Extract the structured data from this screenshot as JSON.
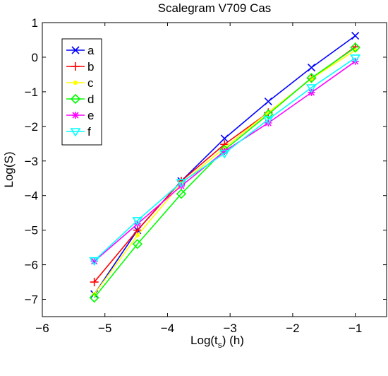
{
  "chart_data": {
    "type": "line",
    "title": "Scalegram V709 Cas",
    "xlabel": {
      "main": "Log(t",
      "sub": "s",
      "tail": ") (h)"
    },
    "ylabel": "Log(S)",
    "xlim": [
      -6,
      -0.5
    ],
    "ylim": [
      -7.5,
      1
    ],
    "xticks": [
      -6,
      -5,
      -4,
      -3,
      -2,
      -1
    ],
    "yticks": [
      1,
      0,
      -1,
      -2,
      -3,
      -4,
      -5,
      -6,
      -7
    ],
    "grid": false,
    "legend_position": "top-left",
    "x": [
      -5.17,
      -4.48,
      -3.78,
      -3.09,
      -2.39,
      -1.7,
      -1.0
    ],
    "series": [
      {
        "name": "a",
        "color": "#0000ff",
        "marker": "x",
        "values": [
          -6.85,
          -5.0,
          -3.58,
          -2.35,
          -1.28,
          -0.3,
          0.62
        ]
      },
      {
        "name": "b",
        "color": "#ff0000",
        "marker": "plus",
        "values": [
          -6.5,
          -5.0,
          -3.58,
          -2.52,
          -1.6,
          -0.62,
          0.3
        ]
      },
      {
        "name": "c",
        "color": "#ffff00",
        "marker": "dot",
        "values": [
          -6.85,
          -5.15,
          -3.65,
          -2.62,
          -1.6,
          -0.62,
          0.2
        ]
      },
      {
        "name": "d",
        "color": "#00ff00",
        "marker": "diamond",
        "values": [
          -6.95,
          -5.4,
          -3.95,
          -2.68,
          -1.65,
          -0.6,
          0.28
        ]
      },
      {
        "name": "e",
        "color": "#ff00ff",
        "marker": "star",
        "values": [
          -5.9,
          -4.82,
          -3.72,
          -2.72,
          -1.9,
          -1.02,
          -0.12
        ]
      },
      {
        "name": "f",
        "color": "#00ffff",
        "marker": "triangle-down",
        "values": [
          -5.88,
          -4.72,
          -3.62,
          -2.78,
          -1.8,
          -0.88,
          -0.02
        ]
      }
    ]
  }
}
